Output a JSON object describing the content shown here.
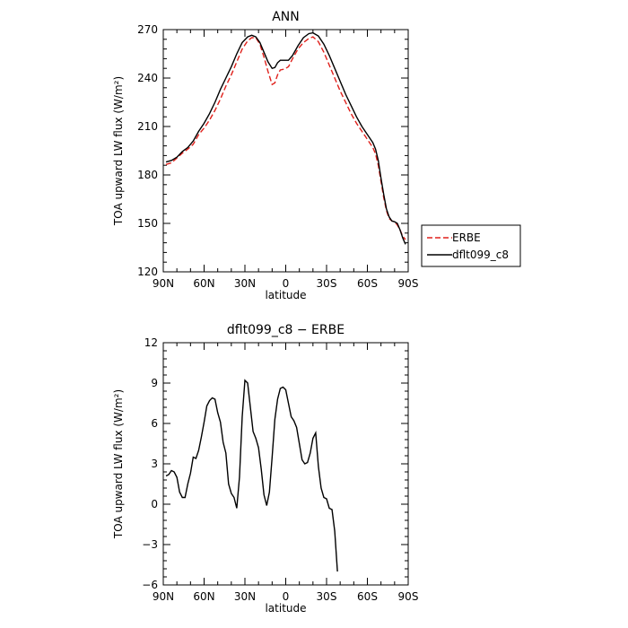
{
  "chart_data": [
    {
      "type": "line",
      "title": "ANN",
      "xlabel": "latitude",
      "ylabel": "TOA upward LW flux (W/m²)",
      "xlim": [
        -90,
        90
      ],
      "ylim": [
        120,
        270
      ],
      "x_ticks": [
        -90,
        -60,
        -30,
        0,
        30,
        60,
        90
      ],
      "x_tick_labels": [
        "90N",
        "60N",
        "30N",
        "0",
        "30S",
        "60S",
        "90S"
      ],
      "y_ticks": [
        120,
        150,
        180,
        210,
        240,
        270
      ],
      "y_tick_labels": [
        "120",
        "150",
        "180",
        "210",
        "240",
        "270"
      ],
      "legend_position": "right",
      "series": [
        {
          "name": "ERBE",
          "color": "#e0201b",
          "dash": "dashed",
          "points": [
            [
              -88,
              186.5
            ],
            [
              -84,
              187.5
            ],
            [
              -80,
              190.5
            ],
            [
              -76,
              193.5
            ],
            [
              -72,
              196
            ],
            [
              -68,
              199
            ],
            [
              -64,
              205
            ],
            [
              -60,
              209
            ],
            [
              -56,
              214
            ],
            [
              -52,
              220
            ],
            [
              -48,
              227
            ],
            [
              -44,
              235
            ],
            [
              -40,
              242
            ],
            [
              -36,
              250
            ],
            [
              -32,
              258
            ],
            [
              -28,
              263
            ],
            [
              -25,
              265
            ],
            [
              -22,
              265
            ],
            [
              -19,
              261
            ],
            [
              -16,
              253
            ],
            [
              -13,
              244
            ],
            [
              -10,
              236
            ],
            [
              -8,
              237
            ],
            [
              -6,
              242
            ],
            [
              -4,
              245
            ],
            [
              -1,
              245.5
            ],
            [
              2,
              247
            ],
            [
              5,
              252
            ],
            [
              9,
              258
            ],
            [
              13,
              262
            ],
            [
              17,
              264.5
            ],
            [
              20,
              265.5
            ],
            [
              24,
              262.5
            ],
            [
              28,
              256
            ],
            [
              32,
              248
            ],
            [
              36,
              240
            ],
            [
              40,
              232
            ],
            [
              44,
              225
            ],
            [
              48,
              218
            ],
            [
              52,
              212
            ],
            [
              56,
              207
            ],
            [
              60,
              202
            ],
            [
              64,
              197
            ],
            [
              66,
              193
            ],
            [
              68,
              186
            ],
            [
              70,
              176
            ],
            [
              72,
              166
            ],
            [
              74,
              158
            ],
            [
              76,
              153
            ],
            [
              78,
              151.5
            ],
            [
              80,
              151
            ],
            [
              82,
              149
            ],
            [
              84,
              146
            ],
            [
              86,
              142
            ],
            [
              88,
              140
            ]
          ]
        },
        {
          "name": "dflt099_c8",
          "color": "#000000",
          "dash": "solid",
          "points": [
            [
              -88,
              188
            ],
            [
              -84,
              189
            ],
            [
              -80,
              191
            ],
            [
              -76,
              194.5
            ],
            [
              -72,
              197
            ],
            [
              -68,
              201
            ],
            [
              -64,
              207
            ],
            [
              -60,
              212
            ],
            [
              -56,
              218
            ],
            [
              -52,
              225
            ],
            [
              -48,
              233
            ],
            [
              -44,
              240
            ],
            [
              -40,
              247
            ],
            [
              -36,
              255
            ],
            [
              -32,
              262
            ],
            [
              -28,
              265.5
            ],
            [
              -25,
              266.5
            ],
            [
              -22,
              265.5
            ],
            [
              -19,
              262
            ],
            [
              -16,
              256
            ],
            [
              -13,
              250
            ],
            [
              -10,
              246
            ],
            [
              -8,
              246.5
            ],
            [
              -6,
              249.5
            ],
            [
              -4,
              251
            ],
            [
              -1,
              251
            ],
            [
              2,
              251
            ],
            [
              5,
              254
            ],
            [
              9,
              260
            ],
            [
              13,
              265
            ],
            [
              17,
              267.5
            ],
            [
              20,
              268
            ],
            [
              24,
              266
            ],
            [
              28,
              261
            ],
            [
              32,
              254
            ],
            [
              36,
              246
            ],
            [
              40,
              238
            ],
            [
              44,
              230
            ],
            [
              48,
              223
            ],
            [
              52,
              216
            ],
            [
              56,
              210
            ],
            [
              60,
              205
            ],
            [
              64,
              200
            ],
            [
              66,
              196
            ],
            [
              68,
              189
            ],
            [
              70,
              178
            ],
            [
              72,
              168
            ],
            [
              74,
              159
            ],
            [
              76,
              154
            ],
            [
              78,
              151.5
            ],
            [
              80,
              151
            ],
            [
              82,
              150
            ],
            [
              84,
              146
            ],
            [
              86,
              141
            ],
            [
              88,
              137
            ]
          ]
        }
      ]
    },
    {
      "type": "line",
      "title": "dflt099_c8 − ERBE",
      "xlabel": "latitude",
      "ylabel": "TOA upward LW flux (W/m²)",
      "xlim": [
        -90,
        90
      ],
      "ylim": [
        -6,
        12
      ],
      "x_ticks": [
        -90,
        -60,
        -30,
        0,
        30,
        60,
        90
      ],
      "x_tick_labels": [
        "90N",
        "60N",
        "30N",
        "0",
        "30S",
        "60S",
        "90S"
      ],
      "y_ticks": [
        -6,
        -3,
        0,
        3,
        6,
        9,
        12
      ],
      "y_tick_labels": [
        "−6",
        "−3",
        "0",
        "3",
        "6",
        "9",
        "12"
      ],
      "series": [
        {
          "color": "#000000",
          "dash": "solid",
          "points": [
            [
              -88,
              2.1
            ],
            [
              -86,
              2.2
            ],
            [
              -84,
              2.5
            ],
            [
              -82,
              2.4
            ],
            [
              -80,
              2.0
            ],
            [
              -78,
              0.9
            ],
            [
              -76,
              0.5
            ],
            [
              -74,
              0.5
            ],
            [
              -72,
              1.5
            ],
            [
              -70,
              2.3
            ],
            [
              -68,
              3.5
            ],
            [
              -66,
              3.4
            ],
            [
              -64,
              4.0
            ],
            [
              -62,
              5.0
            ],
            [
              -60,
              6.1
            ],
            [
              -58,
              7.3
            ],
            [
              -56,
              7.7
            ],
            [
              -54,
              7.9
            ],
            [
              -52,
              7.8
            ],
            [
              -50,
              6.8
            ],
            [
              -48,
              6.1
            ],
            [
              -46,
              4.6
            ],
            [
              -44,
              3.8
            ],
            [
              -42,
              1.5
            ],
            [
              -40,
              0.8
            ],
            [
              -38,
              0.5
            ],
            [
              -36,
              -0.3
            ],
            [
              -34,
              2.0
            ],
            [
              -32,
              6.5
            ],
            [
              -30,
              9.2
            ],
            [
              -28,
              9.0
            ],
            [
              -26,
              7.2
            ],
            [
              -24,
              5.4
            ],
            [
              -22,
              4.9
            ],
            [
              -20,
              4.2
            ],
            [
              -18,
              2.6
            ],
            [
              -16,
              0.7
            ],
            [
              -14,
              -0.1
            ],
            [
              -12,
              0.9
            ],
            [
              -10,
              3.5
            ],
            [
              -8,
              6.3
            ],
            [
              -6,
              7.8
            ],
            [
              -4,
              8.6
            ],
            [
              -2,
              8.7
            ],
            [
              0,
              8.5
            ],
            [
              2,
              7.5
            ],
            [
              4,
              6.5
            ],
            [
              6,
              6.2
            ],
            [
              8,
              5.7
            ],
            [
              10,
              4.5
            ],
            [
              12,
              3.3
            ],
            [
              14,
              3.0
            ],
            [
              16,
              3.1
            ],
            [
              18,
              3.8
            ],
            [
              20,
              4.9
            ],
            [
              22,
              5.3
            ],
            [
              24,
              2.8
            ],
            [
              26,
              1.2
            ],
            [
              28,
              0.5
            ],
            [
              30,
              0.4
            ],
            [
              32,
              -0.3
            ],
            [
              34,
              -0.4
            ],
            [
              36,
              -2.0
            ],
            [
              38,
              -5.0
            ]
          ]
        }
      ]
    }
  ]
}
